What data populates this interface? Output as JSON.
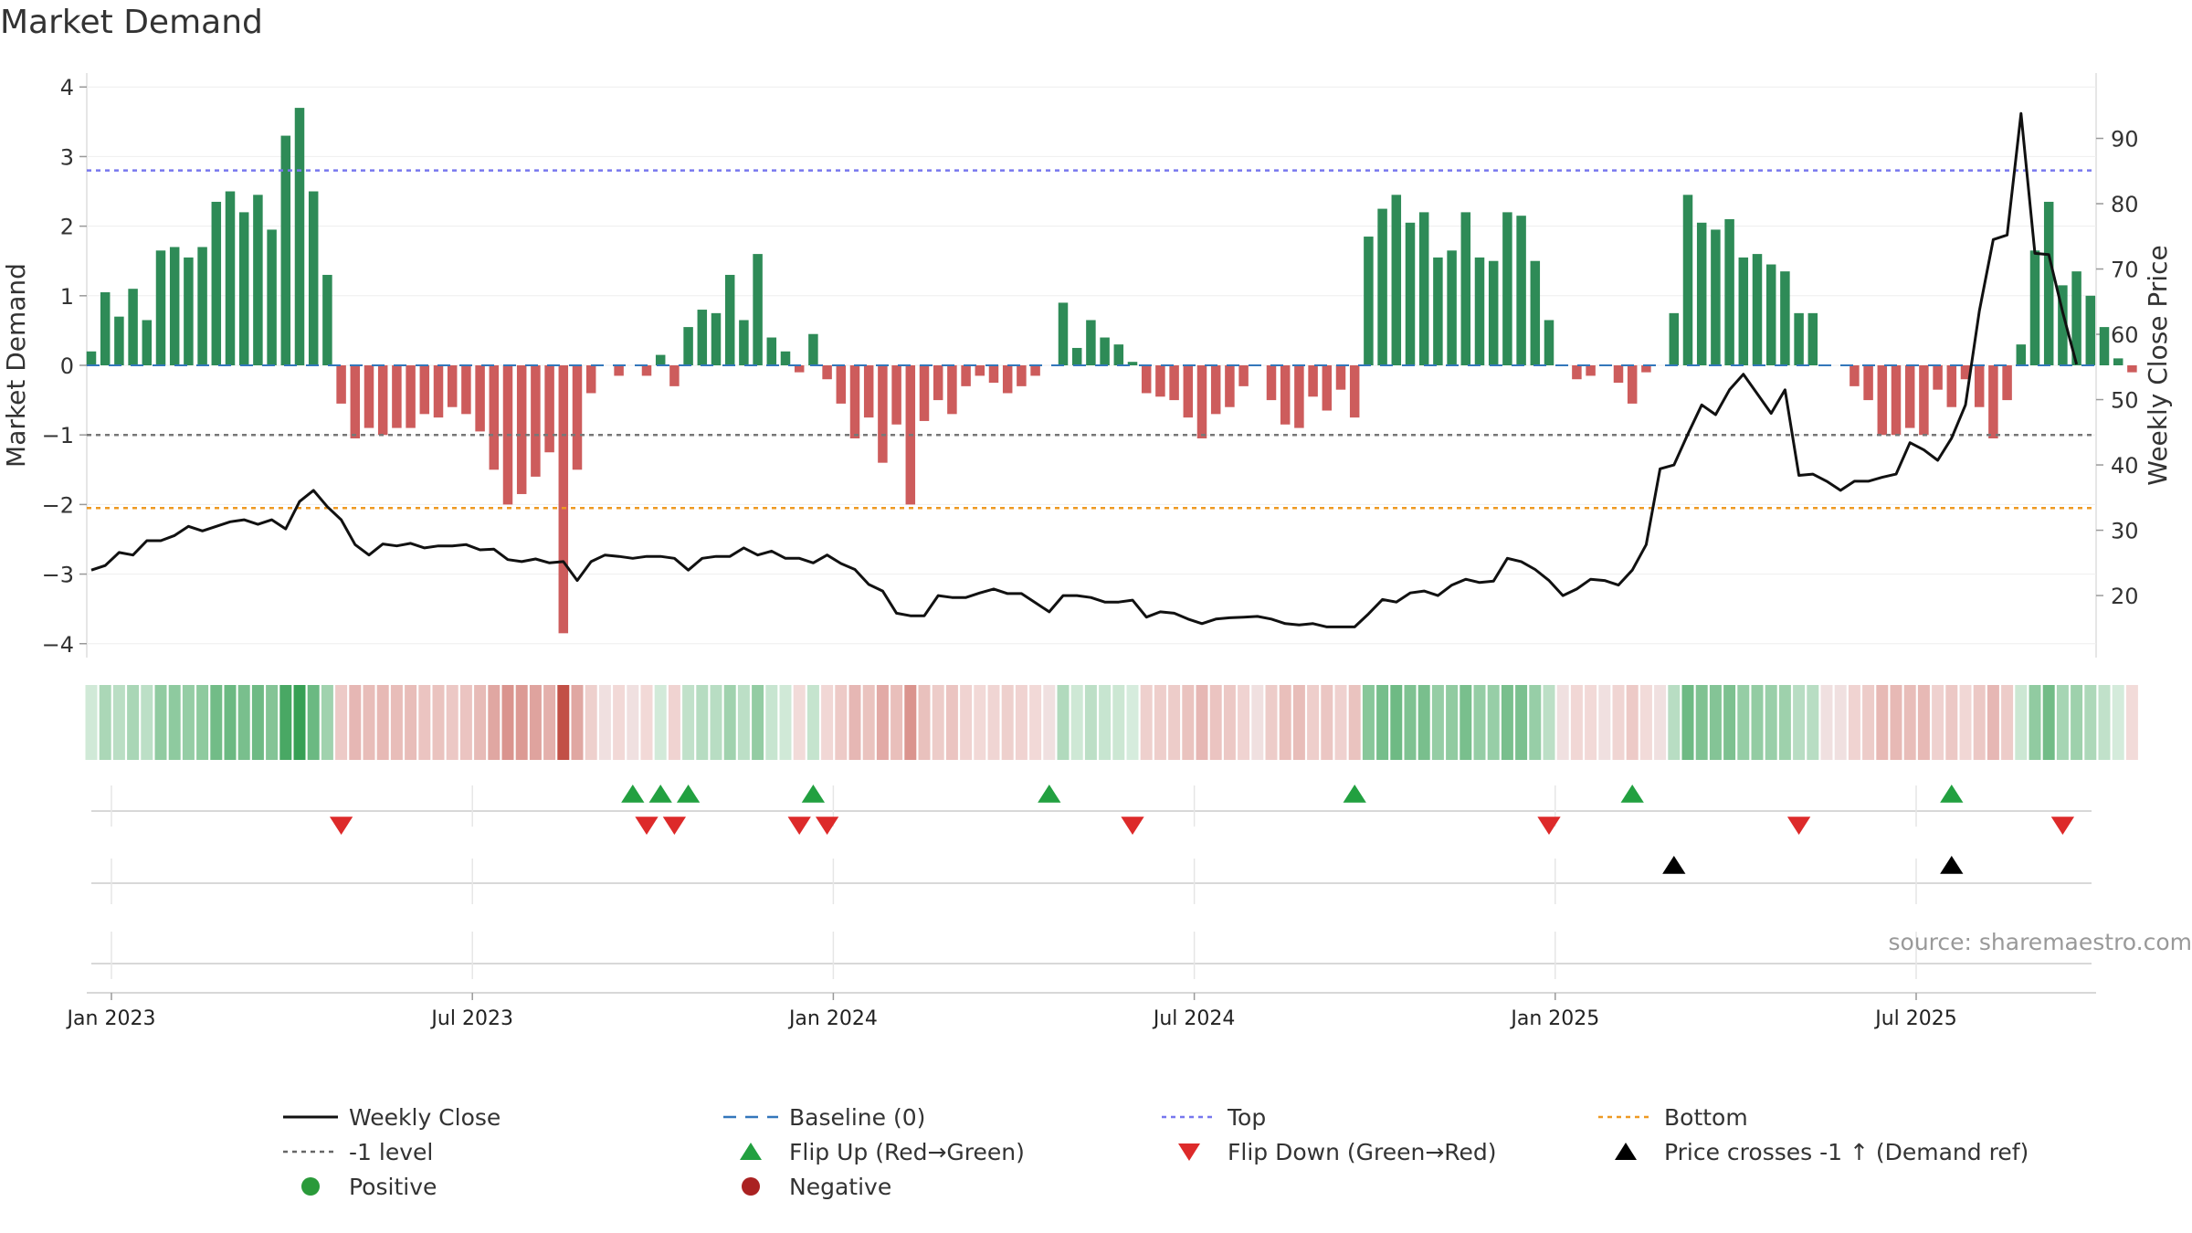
{
  "chart_data": {
    "type": "bar",
    "title": "Market Demand",
    "source": "source: sharemaestro.com",
    "ylabel_left": "Market Demand",
    "ylabel_right": "Weekly Close Price",
    "ylim_left": [
      -4.2,
      4.2
    ],
    "ylim_right": [
      10.5,
      100
    ],
    "yticks_left": [
      "4",
      "3",
      "2",
      "1",
      "0",
      "−1",
      "−2",
      "−3",
      "−4"
    ],
    "yticks_right": [
      "90",
      "80",
      "70",
      "60",
      "50",
      "40",
      "30",
      "20"
    ],
    "x_ticks": [
      {
        "label": "Jan 2023",
        "week": 1
      },
      {
        "label": "Jul 2023",
        "week": 27
      },
      {
        "label": "Jan 2024",
        "week": 53
      },
      {
        "label": "Jul 2024",
        "week": 79
      },
      {
        "label": "Jan 2025",
        "week": 105
      },
      {
        "label": "Jul 2025",
        "week": 131
      }
    ],
    "reference_lines": [
      {
        "name": "Top",
        "value": 2.8,
        "color": "#7777ee"
      },
      {
        "name": "-1 level",
        "value": -1.0,
        "color": "#777777"
      },
      {
        "name": "Bottom",
        "value": -2.05,
        "color": "#ee9922"
      }
    ],
    "demand": [
      0.2,
      1.05,
      0.7,
      1.1,
      0.65,
      1.65,
      1.7,
      1.55,
      1.7,
      2.35,
      2.5,
      2.2,
      2.45,
      1.95,
      3.3,
      3.7,
      2.5,
      1.3,
      -0.55,
      -1.05,
      -0.9,
      -1.0,
      -0.9,
      -0.9,
      -0.7,
      -0.75,
      -0.6,
      -0.7,
      -0.95,
      -1.5,
      -2.0,
      -1.85,
      -1.6,
      -1.25,
      -3.85,
      -1.5,
      -0.4,
      0.0,
      -0.15,
      0.0,
      -0.15,
      0.15,
      -0.3,
      0.55,
      0.8,
      0.75,
      1.3,
      0.65,
      1.6,
      0.4,
      0.2,
      -0.1,
      0.45,
      -0.2,
      -0.55,
      -1.05,
      -0.75,
      -1.4,
      -0.85,
      -2.0,
      -0.8,
      -0.5,
      -0.7,
      -0.3,
      -0.15,
      -0.25,
      -0.4,
      -0.3,
      -0.15,
      0.0,
      0.9,
      0.25,
      0.65,
      0.4,
      0.3,
      0.05,
      -0.4,
      -0.45,
      -0.5,
      -0.75,
      -1.05,
      -0.7,
      -0.6,
      -0.3,
      0.0,
      -0.5,
      -0.85,
      -0.9,
      -0.45,
      -0.65,
      -0.35,
      -0.75,
      1.85,
      2.25,
      2.45,
      2.05,
      2.2,
      1.55,
      1.65,
      2.2,
      1.55,
      1.5,
      2.2,
      2.15,
      1.5,
      0.65,
      0.0,
      -0.2,
      -0.15,
      0.0,
      -0.25,
      -0.55,
      -0.1,
      0.0,
      0.75,
      2.45,
      2.05,
      1.95,
      2.1,
      1.55,
      1.6,
      1.45,
      1.35,
      0.75,
      0.75,
      0.0,
      0.0,
      -0.3,
      -0.5,
      -1.0,
      -1.0,
      -0.9,
      -1.0,
      -0.35,
      -0.6,
      -0.2,
      -0.6,
      -1.05,
      -0.5,
      0.3,
      1.65,
      2.35,
      1.15,
      1.35,
      1.0,
      0.55,
      0.1,
      -0.1
    ],
    "weekly_close": [
      23.9,
      24.6,
      26.6,
      26.2,
      28.4,
      28.4,
      29.2,
      30.6,
      29.9,
      30.6,
      31.3,
      31.6,
      30.9,
      31.6,
      30.2,
      34.4,
      36.1,
      33.6,
      31.6,
      27.8,
      26.2,
      27.9,
      27.6,
      28.0,
      27.3,
      27.6,
      27.6,
      27.8,
      27.0,
      27.1,
      25.5,
      25.2,
      25.6,
      25.0,
      25.2,
      22.3,
      25.2,
      26.2,
      26.0,
      25.7,
      26.0,
      26.0,
      25.7,
      23.9,
      25.7,
      26.0,
      26.0,
      27.3,
      26.2,
      26.8,
      25.7,
      25.7,
      25.0,
      26.2,
      24.9,
      24.0,
      21.7,
      20.7,
      17.3,
      16.9,
      16.9,
      20.0,
      19.7,
      19.7,
      20.4,
      21.0,
      20.3,
      20.3,
      18.9,
      17.5,
      20.0,
      20.0,
      19.7,
      19.0,
      19.0,
      19.3,
      16.7,
      17.5,
      17.3,
      16.4,
      15.7,
      16.4,
      16.6,
      16.7,
      16.8,
      16.4,
      15.7,
      15.5,
      15.7,
      15.2,
      15.2,
      15.2,
      17.2,
      19.4,
      19.0,
      20.4,
      20.7,
      20.0,
      21.6,
      22.5,
      22.0,
      22.2,
      25.7,
      25.2,
      24.0,
      22.3,
      20.0,
      21.0,
      22.5,
      22.3,
      21.6,
      23.9,
      27.8,
      39.4,
      40.0,
      44.7,
      49.2,
      47.7,
      51.5,
      53.9,
      50.9,
      47.9,
      51.5,
      38.4,
      38.6,
      37.5,
      36.1,
      37.5,
      37.5,
      38.1,
      38.6,
      43.4,
      42.3,
      40.7,
      44.1,
      49.2,
      63.6,
      74.5,
      75.2,
      93.8,
      72.4,
      72.2,
      63.4,
      55.4
    ],
    "series": [
      {
        "name": "Weekly Close",
        "style": "solid-line",
        "color": "#111111"
      },
      {
        "name": "Baseline (0)",
        "style": "dashed-line",
        "color": "#3377bb"
      },
      {
        "name": "Top",
        "style": "dotted-line",
        "color": "#7777ee"
      },
      {
        "name": "Bottom",
        "style": "dotted-line",
        "color": "#ee9922"
      },
      {
        "name": "-1 level",
        "style": "dotted-line",
        "color": "#666666"
      },
      {
        "name": "Flip Up (Red→Green)",
        "style": "triangle-up",
        "color": "#22a040"
      },
      {
        "name": "Flip Down (Green→Red)",
        "style": "triangle-down",
        "color": "#dd2a2a"
      },
      {
        "name": "Price crosses -1 ↑ (Demand ref)",
        "style": "triangle-up",
        "color": "#000000"
      },
      {
        "name": "Positive",
        "style": "circle",
        "color": "#2a9a3a"
      },
      {
        "name": "Negative",
        "style": "circle",
        "color": "#aa2222"
      }
    ],
    "flip_up_weeks": [
      40,
      42,
      44,
      53,
      70,
      92,
      112,
      135
    ],
    "flip_down_weeks": [
      19,
      41,
      43,
      52,
      54,
      76,
      106,
      124,
      143
    ],
    "price_cross_weeks": [
      115,
      135
    ],
    "colors": {
      "positive": "#2e8b57",
      "negative": "#cd5c5c",
      "close": "#111111"
    }
  }
}
